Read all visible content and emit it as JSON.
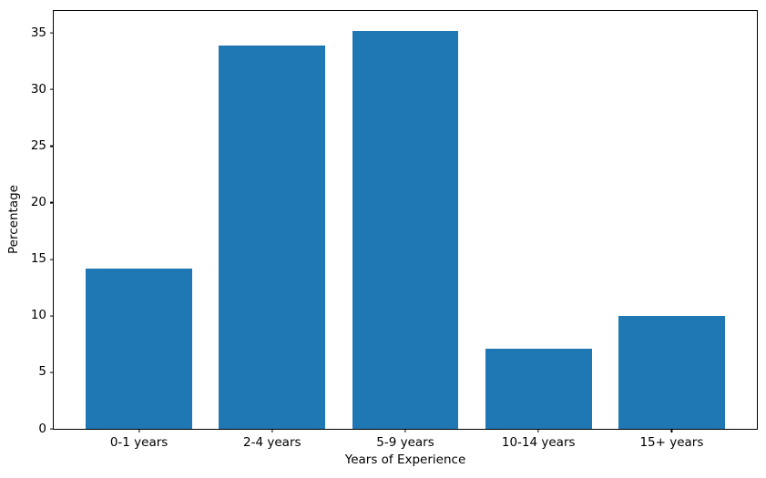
{
  "chart_data": {
    "type": "bar",
    "categories": [
      "0-1 years",
      "2-4 years",
      "5-9 years",
      "10-14 years",
      "15+ years"
    ],
    "values": [
      14.2,
      33.9,
      35.2,
      7.1,
      10.0
    ],
    "xlabel": "Years of Experience",
    "ylabel": "Percentage",
    "ylim": [
      0,
      36.96
    ],
    "yticks": [
      0,
      5,
      10,
      15,
      20,
      25,
      30,
      35
    ],
    "bar_color": "#1f77b4",
    "axis_color": "#000000",
    "background_color": "#ffffff",
    "grid": false,
    "legend_position": "none"
  }
}
